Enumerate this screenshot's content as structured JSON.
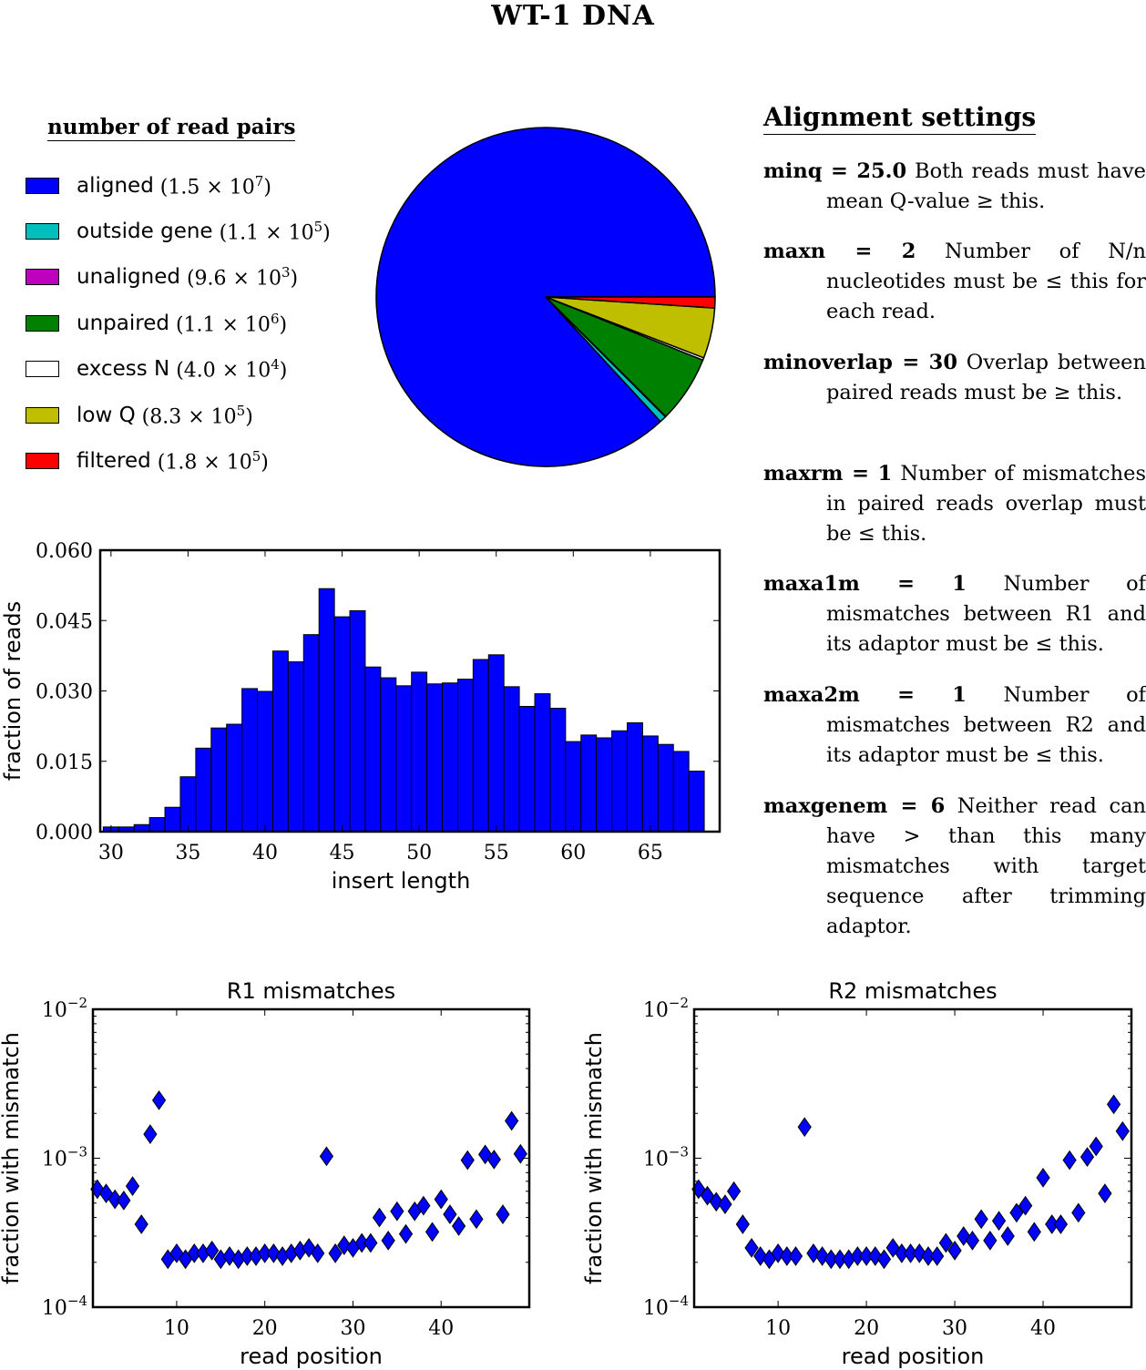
{
  "title": "WT-1 DNA",
  "read_pairs": {
    "title": "number of read pairs",
    "items": [
      {
        "label": "aligned",
        "count": "(1.5 × 10",
        "exp": "7",
        "close": ")",
        "color": "#0000ff",
        "value": 15000000
      },
      {
        "label": "outside gene",
        "count": "(1.1 × 10",
        "exp": "5",
        "close": ")",
        "color": "#00bfbf",
        "value": 110000
      },
      {
        "label": "unaligned",
        "count": "(9.6 × 10",
        "exp": "3",
        "close": ")",
        "color": "#bf00bf",
        "value": 9600
      },
      {
        "label": "unpaired",
        "count": "(1.1 × 10",
        "exp": "6",
        "close": ")",
        "color": "#008000",
        "value": 1100000
      },
      {
        "label": "excess N",
        "count": "(4.0 × 10",
        "exp": "4",
        "close": ")",
        "color": "#ffffff",
        "value": 40000
      },
      {
        "label": "low Q",
        "count": "(8.3 × 10",
        "exp": "5",
        "close": ")",
        "color": "#bfbf00",
        "value": 830000
      },
      {
        "label": "filtered",
        "count": "(1.8 × 10",
        "exp": "5",
        "close": ")",
        "color": "#ff0000",
        "value": 180000
      }
    ]
  },
  "settings": {
    "title": "Alignment settings",
    "items": [
      {
        "key": "minq = 25.0",
        "text": "Both reads must have mean Q-value ≥ this."
      },
      {
        "key": "maxn = 2",
        "text": "Number of N/n nucleotides must be ≤ this for each read."
      },
      {
        "key": "minoverlap = 30",
        "text": "Overlap between paired reads must be ≥ this."
      },
      {
        "key": "maxrm = 1",
        "text": "Number of mismatches in paired reads overlap must be ≤ this."
      },
      {
        "key": "maxa1m = 1",
        "text": "Number of mismatches between R1 and its adaptor must be ≤ this."
      },
      {
        "key": "maxa2m = 1",
        "text": "Number of mismatches between R2 and its adaptor must be ≤ this."
      },
      {
        "key": "maxgenem = 6",
        "text": "Neither read can have > than this many mismatches with target sequence after trimming adaptor."
      }
    ]
  },
  "chart_data": [
    {
      "type": "pie",
      "labels": [
        "aligned",
        "outside gene",
        "unaligned",
        "unpaired",
        "excess N",
        "low Q",
        "filtered"
      ],
      "values": [
        15000000,
        110000,
        9600,
        1100000,
        40000,
        830000,
        180000
      ],
      "colors": [
        "#0000ff",
        "#00bfbf",
        "#bf00bf",
        "#008000",
        "#ffffff",
        "#bfbf00",
        "#ff0000"
      ]
    },
    {
      "type": "bar",
      "xlabel": "insert length",
      "ylabel": "fraction of reads",
      "x": [
        30,
        31,
        32,
        33,
        34,
        35,
        36,
        37,
        38,
        39,
        40,
        41,
        42,
        43,
        44,
        45,
        46,
        47,
        48,
        49,
        50,
        51,
        52,
        53,
        54,
        55,
        56,
        57,
        58,
        59,
        60,
        61,
        62,
        63,
        64,
        65,
        66,
        67,
        68
      ],
      "values": [
        0.001,
        0.001,
        0.0015,
        0.003,
        0.0052,
        0.0117,
        0.0178,
        0.0221,
        0.0229,
        0.0305,
        0.0299,
        0.0385,
        0.0362,
        0.042,
        0.0518,
        0.0458,
        0.0471,
        0.0351,
        0.0328,
        0.0311,
        0.034,
        0.0315,
        0.0317,
        0.0325,
        0.0367,
        0.0377,
        0.0309,
        0.0267,
        0.0294,
        0.0263,
        0.0192,
        0.0206,
        0.02,
        0.0215,
        0.0232,
        0.0204,
        0.0186,
        0.0171,
        0.0129
      ],
      "xlim": [
        29.3,
        69.5
      ],
      "ylim": [
        0,
        0.06
      ],
      "xticks": [
        "30",
        "35",
        "40",
        "45",
        "50",
        "55",
        "60",
        "65"
      ],
      "yticks": [
        "0.000",
        "0.015",
        "0.030",
        "0.045",
        "0.060"
      ]
    },
    {
      "type": "scatter",
      "title": "R1 mismatches",
      "xlabel": "read position",
      "ylabel": "fraction with mismatch",
      "yscale": "log",
      "xlim": [
        0.5,
        50
      ],
      "ylim": [
        0.0001,
        0.01
      ],
      "xticks": [
        "10",
        "20",
        "30",
        "40"
      ],
      "yticks": [
        {
          "base": "10",
          "exp": "−2"
        },
        {
          "base": "10",
          "exp": "−3"
        },
        {
          "base": "10",
          "exp": "−4"
        }
      ],
      "marker": "diamond",
      "color": "#0000ff",
      "x": [
        1,
        2,
        3,
        4,
        5,
        6,
        7,
        8,
        9,
        10,
        11,
        12,
        13,
        14,
        15,
        16,
        17,
        18,
        19,
        20,
        21,
        22,
        23,
        24,
        25,
        26,
        27,
        28,
        29,
        30,
        31,
        32,
        33,
        34,
        35,
        36,
        37,
        38,
        39,
        40,
        41,
        42,
        43,
        44,
        45,
        46,
        47,
        48,
        49
      ],
      "y": [
        0.00062,
        0.00058,
        0.00053,
        0.00052,
        0.00065,
        0.00036,
        0.00145,
        0.00245,
        0.00021,
        0.00023,
        0.00021,
        0.00023,
        0.00023,
        0.00024,
        0.00021,
        0.00022,
        0.00021,
        0.00022,
        0.00022,
        0.00023,
        0.00023,
        0.00022,
        0.00023,
        0.00024,
        0.00025,
        0.00023,
        0.00103,
        0.00023,
        0.00026,
        0.00025,
        0.00027,
        0.00027,
        0.0004,
        0.00028,
        0.00044,
        0.00031,
        0.00044,
        0.00048,
        0.00032,
        0.00053,
        0.00042,
        0.00035,
        0.00097,
        0.00039,
        0.00106,
        0.00098,
        0.00042,
        0.00178,
        0.00107
      ]
    },
    {
      "type": "scatter",
      "title": "R2 mismatches",
      "xlabel": "read position",
      "ylabel": "fraction with mismatch",
      "yscale": "log",
      "xlim": [
        0.5,
        50
      ],
      "ylim": [
        0.0001,
        0.01
      ],
      "xticks": [
        "10",
        "20",
        "30",
        "40"
      ],
      "yticks": [
        {
          "base": "10",
          "exp": "−2"
        },
        {
          "base": "10",
          "exp": "−3"
        },
        {
          "base": "10",
          "exp": "−4"
        }
      ],
      "marker": "diamond",
      "color": "#0000ff",
      "x": [
        1,
        2,
        3,
        4,
        5,
        6,
        7,
        8,
        9,
        10,
        11,
        12,
        13,
        14,
        15,
        16,
        17,
        18,
        19,
        20,
        21,
        22,
        23,
        24,
        25,
        26,
        27,
        28,
        29,
        30,
        31,
        32,
        33,
        34,
        35,
        36,
        37,
        38,
        39,
        40,
        41,
        42,
        43,
        44,
        45,
        46,
        47,
        48,
        49
      ],
      "y": [
        0.00062,
        0.00056,
        0.00051,
        0.00049,
        0.0006,
        0.00036,
        0.00025,
        0.00022,
        0.00021,
        0.00023,
        0.00022,
        0.00022,
        0.00162,
        0.00023,
        0.00022,
        0.00021,
        0.00021,
        0.00021,
        0.00022,
        0.00022,
        0.00022,
        0.00021,
        0.00025,
        0.00023,
        0.00023,
        0.00023,
        0.00022,
        0.00022,
        0.00027,
        0.00024,
        0.0003,
        0.00028,
        0.00039,
        0.00028,
        0.00038,
        0.0003,
        0.00043,
        0.00048,
        0.00032,
        0.00074,
        0.00036,
        0.00036,
        0.00097,
        0.00043,
        0.00102,
        0.0012,
        0.00058,
        0.0023,
        0.00152
      ]
    }
  ]
}
